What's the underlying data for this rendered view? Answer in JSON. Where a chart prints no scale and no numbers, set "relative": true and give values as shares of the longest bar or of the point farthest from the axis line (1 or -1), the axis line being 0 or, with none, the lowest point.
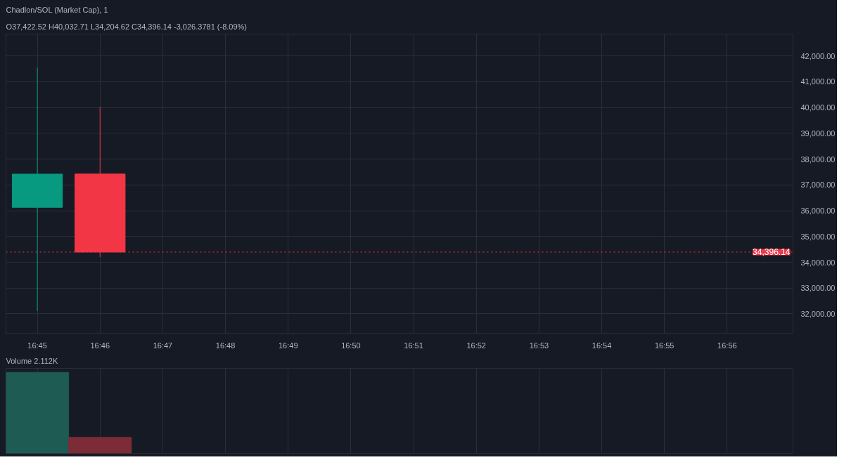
{
  "chart_data": [
    {
      "type": "candlestick",
      "title": "Chadlon/SOL (Market Cap), 1",
      "subtitle": "O37,422.52 H40,032.71 L34,204.62 C34,396.14 -3,026.3781 (-8.09%)",
      "categories": [
        "16:45",
        "16:46",
        "16:47",
        "16:48",
        "16:49",
        "16:50",
        "16:51",
        "16:52",
        "16:53",
        "16:54",
        "16:55",
        "16:56"
      ],
      "ohlc": [
        [
          36130,
          41550,
          32110,
          37420
        ],
        [
          37422.52,
          40032.71,
          34204.62,
          34396.14
        ],
        null,
        null,
        null,
        null,
        null,
        null,
        null,
        null,
        null,
        null
      ],
      "colors": [
        "#089981",
        "#f23645",
        null,
        null,
        null,
        null,
        null,
        null,
        null,
        null,
        null,
        null
      ],
      "ylim": [
        31250,
        42850
      ],
      "yticks": [
        {
          "value": 32000,
          "label": "32,000.00"
        },
        {
          "value": 33000,
          "label": "33,000.00"
        },
        {
          "value": 34000,
          "label": "34,000.00"
        },
        {
          "value": 35000,
          "label": "35,000.00"
        },
        {
          "value": 36000,
          "label": "36,000.00"
        },
        {
          "value": 37000,
          "label": "37,000.00"
        },
        {
          "value": 38000,
          "label": "38,000.00"
        },
        {
          "value": 39000,
          "label": "39,000.00"
        },
        {
          "value": 40000,
          "label": "40,000.00"
        },
        {
          "value": 41000,
          "label": "41,000.00"
        },
        {
          "value": 42000,
          "label": "42,000.00"
        }
      ],
      "ref_lines": [
        {
          "axis": "y",
          "value": 34396.14,
          "label": "34,396.14",
          "color": "#f23645",
          "line_style": "dotted"
        }
      ],
      "grid": true
    },
    {
      "type": "bar",
      "title": "Volume 2.112K",
      "categories": [
        null,
        null,
        null,
        null,
        null,
        null,
        null,
        null,
        null,
        null,
        null,
        null
      ],
      "values": [
        1,
        0.197,
        null,
        null,
        null,
        null,
        null,
        null,
        null,
        null,
        null,
        null
      ],
      "colors": [
        "#1e5b53",
        "#7b2c36",
        null,
        null,
        null,
        null,
        null,
        null,
        null,
        null,
        null,
        null
      ],
      "relative": true,
      "grid": "x",
      "tick_labels": false
    }
  ]
}
